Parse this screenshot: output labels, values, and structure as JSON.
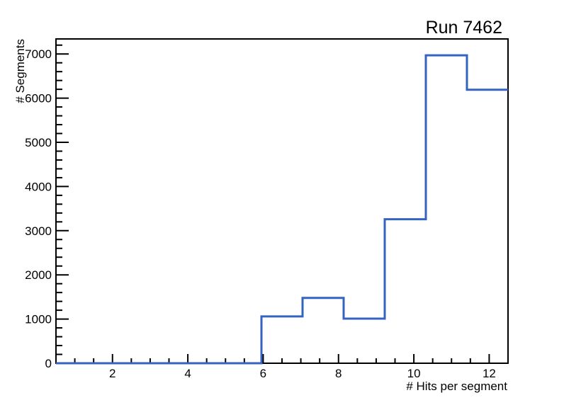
{
  "page": {
    "background_color": "#ffffff",
    "axis_color": "#000000",
    "text_color": "#000000"
  },
  "chart_data": {
    "type": "bar",
    "style": "step-histogram",
    "title": "Run 7462",
    "xlabel": "# Hits per segment",
    "ylabel": "# Segments",
    "xlim": [
      0.5,
      12.5
    ],
    "ylim": [
      0,
      7340
    ],
    "grid": false,
    "legend": "none",
    "line_color": "#3563c2",
    "bin_edges": [
      0.5,
      1.591,
      2.682,
      3.773,
      4.864,
      5.955,
      7.045,
      8.136,
      9.227,
      10.318,
      11.409,
      12.5
    ],
    "counts": [
      0,
      0,
      0,
      0,
      0,
      1060,
      1480,
      1010,
      3260,
      6970,
      6190
    ],
    "x_tick_values": [
      2,
      4,
      6,
      8,
      10,
      12
    ],
    "x_tick_labels": [
      "2",
      "4",
      "6",
      "8",
      "10",
      "12"
    ],
    "x_minor_tick_start": 1.0,
    "x_minor_tick_step": 0.5,
    "x_minor_tick_end": 12.0,
    "y_tick_values": [
      0,
      1000,
      2000,
      3000,
      4000,
      5000,
      6000,
      7000
    ],
    "y_tick_labels": [
      "0",
      "1000",
      "2000",
      "3000",
      "4000",
      "5000",
      "6000",
      "7000"
    ],
    "y_minor_tick_start": 200,
    "y_minor_tick_step": 200,
    "y_minor_tick_end": 7200
  }
}
